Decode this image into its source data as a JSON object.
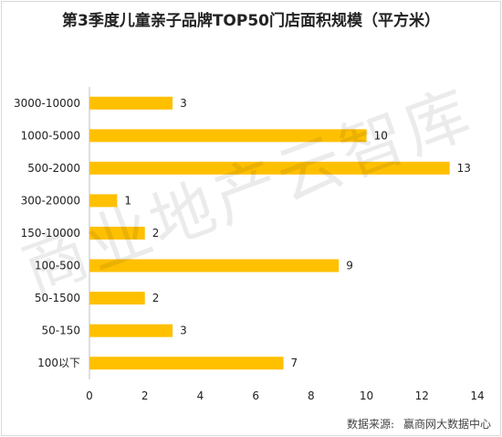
{
  "chart_data": {
    "type": "bar",
    "orientation": "horizontal",
    "title": "第3季度儿童亲子品牌TOP50门店面积规模（平方米）",
    "categories": [
      "3000-10000",
      "1000-5000",
      "500-2000",
      "300-20000",
      "150-10000",
      "100-500",
      "50-1500",
      "50-150",
      "100以下"
    ],
    "values": [
      3,
      10,
      13,
      1,
      2,
      9,
      2,
      3,
      7
    ],
    "xlim": [
      0,
      14
    ],
    "xticks": [
      0,
      2,
      4,
      6,
      8,
      10,
      12,
      14
    ],
    "bar_color": "#FFC000",
    "grid": false,
    "legend": "none"
  },
  "watermark": "商业地产云智库",
  "source": {
    "label": "数据来源:",
    "value": "赢商网大数据中心"
  }
}
